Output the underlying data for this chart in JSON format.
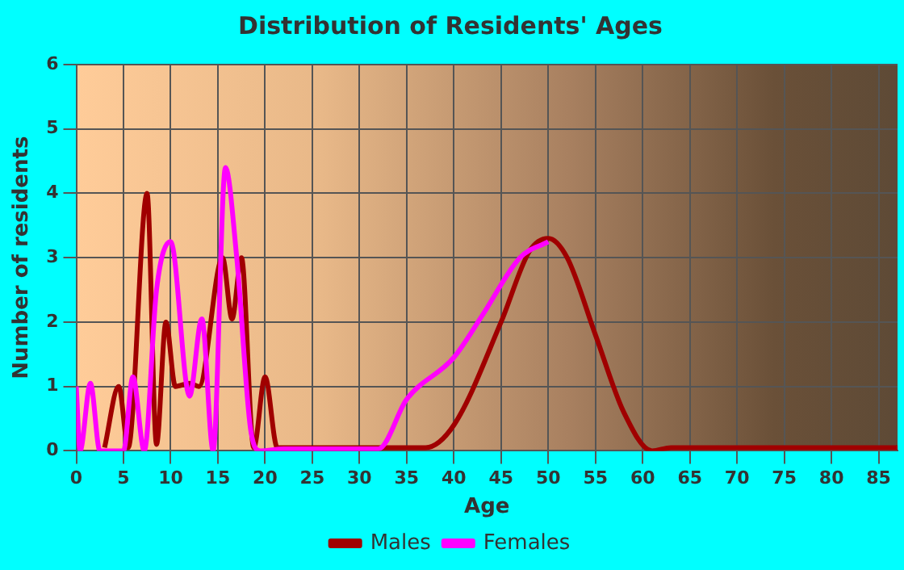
{
  "chart_data": {
    "type": "line",
    "title": "Distribution of Residents' Ages",
    "xlabel": "Age",
    "ylabel": "Number of residents",
    "xlim": [
      0,
      87
    ],
    "xticks": [
      0,
      5,
      10,
      15,
      20,
      25,
      30,
      35,
      40,
      45,
      50,
      55,
      60,
      65,
      70,
      75,
      80,
      85
    ],
    "ylim": [
      0,
      6
    ],
    "yticks": [
      0,
      1,
      2,
      3,
      4,
      5,
      6
    ],
    "grid": true,
    "legend": "bottom",
    "marker": "none",
    "line_style": "solid",
    "series": [
      {
        "name": "Males",
        "color": "#a00000",
        "x": [
          3,
          4.5,
          5.5,
          7.5,
          8.5,
          9.5,
          10.5,
          12,
          13,
          15.5,
          16.5,
          17.5,
          18.8,
          20,
          21.3,
          25,
          37,
          40,
          45,
          48,
          50,
          52,
          55,
          58,
          61,
          63,
          87
        ],
        "values": [
          0.05,
          1,
          0.05,
          4,
          0.1,
          2,
          1,
          1.05,
          1,
          3,
          2.05,
          3,
          0.05,
          1.15,
          0.05,
          0.05,
          0.05,
          0.4,
          2,
          3.1,
          3.3,
          3,
          1.8,
          0.6,
          0,
          0.05,
          0.05
        ]
      },
      {
        "name": "Females",
        "color": "#ff00ff",
        "x": [
          0,
          0.4,
          1.5,
          2.5,
          5,
          6,
          7.2,
          8.5,
          10,
          12,
          13.3,
          14.5,
          15.8,
          17,
          18.5,
          19.5,
          22,
          32,
          35,
          40,
          43,
          47,
          50
        ],
        "values": [
          1,
          0,
          1.05,
          0,
          0,
          1.15,
          0,
          2.5,
          3.25,
          0.85,
          2.05,
          0,
          4.4,
          3,
          0.3,
          0,
          0.03,
          0.03,
          0.8,
          1.45,
          2.1,
          3,
          3.25
        ]
      }
    ]
  }
}
